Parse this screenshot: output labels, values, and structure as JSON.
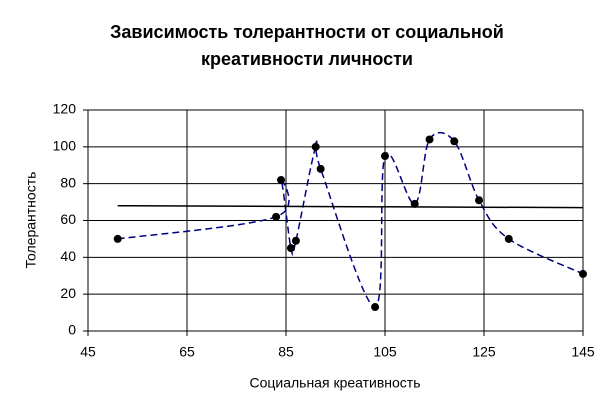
{
  "chart_data": {
    "type": "scatter",
    "title": [
      "Зависимость толерантности от социальной",
      "креативности личности"
    ],
    "x_label": "Социальная креативность",
    "y_label": "Толерантность",
    "xlim": [
      45,
      145
    ],
    "xticks": [
      45,
      65,
      85,
      105,
      125,
      145
    ],
    "ylim": [
      0,
      120
    ],
    "yticks": [
      0,
      20,
      40,
      60,
      80,
      100,
      120
    ],
    "grid": true,
    "series": [
      {
        "color": "#000080",
        "marker_color": "#000000",
        "line": "smooth-dashed",
        "x": [
          51,
          83,
          84,
          86,
          87,
          91,
          92,
          103,
          105,
          111,
          114,
          119,
          124,
          130,
          145
        ],
        "values": [
          50,
          62,
          82,
          45,
          49,
          100,
          88,
          13,
          95,
          69,
          104,
          103,
          71,
          50,
          31
        ]
      },
      {
        "color": "#000000",
        "line": "solid",
        "x": [
          51,
          145
        ],
        "values": [
          68,
          67
        ]
      }
    ]
  }
}
